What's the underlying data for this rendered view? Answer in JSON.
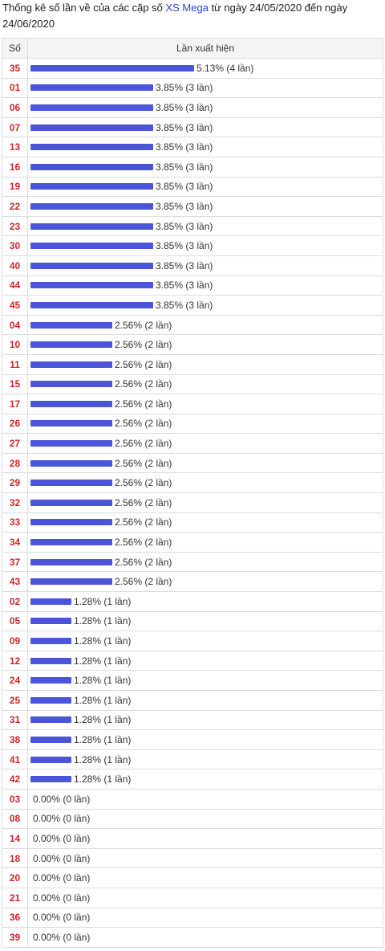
{
  "header": {
    "title_prefix": "Thống kê số lần về của các cặp số ",
    "title_link": "XS Mega",
    "title_suffix": " từ ngày 24/05/2020 đến ngày 24/06/2020"
  },
  "table": {
    "col_number": "Số",
    "col_frequency": "Lần xuất hiện"
  },
  "colors": {
    "bar": "#4a55d9",
    "number": "#d0262a",
    "link": "#2a3fd6"
  },
  "chart_data": {
    "type": "bar",
    "orientation": "horizontal",
    "max_percent": 5.13,
    "rows": [
      {
        "num": "35",
        "percent": 5.13,
        "label": "5.13% (4 lần)"
      },
      {
        "num": "01",
        "percent": 3.85,
        "label": "3.85% (3 lần)"
      },
      {
        "num": "06",
        "percent": 3.85,
        "label": "3.85% (3 lần)"
      },
      {
        "num": "07",
        "percent": 3.85,
        "label": "3.85% (3 lần)"
      },
      {
        "num": "13",
        "percent": 3.85,
        "label": "3.85% (3 lần)"
      },
      {
        "num": "16",
        "percent": 3.85,
        "label": "3.85% (3 lần)"
      },
      {
        "num": "19",
        "percent": 3.85,
        "label": "3.85% (3 lần)"
      },
      {
        "num": "22",
        "percent": 3.85,
        "label": "3.85% (3 lần)"
      },
      {
        "num": "23",
        "percent": 3.85,
        "label": "3.85% (3 lần)"
      },
      {
        "num": "30",
        "percent": 3.85,
        "label": "3.85% (3 lần)"
      },
      {
        "num": "40",
        "percent": 3.85,
        "label": "3.85% (3 lần)"
      },
      {
        "num": "44",
        "percent": 3.85,
        "label": "3.85% (3 lần)"
      },
      {
        "num": "45",
        "percent": 3.85,
        "label": "3.85% (3 lần)"
      },
      {
        "num": "04",
        "percent": 2.56,
        "label": "2.56% (2 lần)"
      },
      {
        "num": "10",
        "percent": 2.56,
        "label": "2.56% (2 lần)"
      },
      {
        "num": "11",
        "percent": 2.56,
        "label": "2.56% (2 lần)"
      },
      {
        "num": "15",
        "percent": 2.56,
        "label": "2.56% (2 lần)"
      },
      {
        "num": "17",
        "percent": 2.56,
        "label": "2.56% (2 lần)"
      },
      {
        "num": "26",
        "percent": 2.56,
        "label": "2.56% (2 lần)"
      },
      {
        "num": "27",
        "percent": 2.56,
        "label": "2.56% (2 lần)"
      },
      {
        "num": "28",
        "percent": 2.56,
        "label": "2.56% (2 lần)"
      },
      {
        "num": "29",
        "percent": 2.56,
        "label": "2.56% (2 lần)"
      },
      {
        "num": "32",
        "percent": 2.56,
        "label": "2.56% (2 lần)"
      },
      {
        "num": "33",
        "percent": 2.56,
        "label": "2.56% (2 lần)"
      },
      {
        "num": "34",
        "percent": 2.56,
        "label": "2.56% (2 lần)"
      },
      {
        "num": "37",
        "percent": 2.56,
        "label": "2.56% (2 lần)"
      },
      {
        "num": "43",
        "percent": 2.56,
        "label": "2.56% (2 lần)"
      },
      {
        "num": "02",
        "percent": 1.28,
        "label": "1.28% (1 lần)"
      },
      {
        "num": "05",
        "percent": 1.28,
        "label": "1.28% (1 lần)"
      },
      {
        "num": "09",
        "percent": 1.28,
        "label": "1.28% (1 lần)"
      },
      {
        "num": "12",
        "percent": 1.28,
        "label": "1.28% (1 lần)"
      },
      {
        "num": "24",
        "percent": 1.28,
        "label": "1.28% (1 lần)"
      },
      {
        "num": "25",
        "percent": 1.28,
        "label": "1.28% (1 lần)"
      },
      {
        "num": "31",
        "percent": 1.28,
        "label": "1.28% (1 lần)"
      },
      {
        "num": "38",
        "percent": 1.28,
        "label": "1.28% (1 lần)"
      },
      {
        "num": "41",
        "percent": 1.28,
        "label": "1.28% (1 lần)"
      },
      {
        "num": "42",
        "percent": 1.28,
        "label": "1.28% (1 lần)"
      },
      {
        "num": "03",
        "percent": 0.0,
        "label": "0.00% (0 lần)"
      },
      {
        "num": "08",
        "percent": 0.0,
        "label": "0.00% (0 lần)"
      },
      {
        "num": "14",
        "percent": 0.0,
        "label": "0.00% (0 lần)"
      },
      {
        "num": "18",
        "percent": 0.0,
        "label": "0.00% (0 lần)"
      },
      {
        "num": "20",
        "percent": 0.0,
        "label": "0.00% (0 lần)"
      },
      {
        "num": "21",
        "percent": 0.0,
        "label": "0.00% (0 lần)"
      },
      {
        "num": "36",
        "percent": 0.0,
        "label": "0.00% (0 lần)"
      },
      {
        "num": "39",
        "percent": 0.0,
        "label": "0.00% (0 lần)"
      }
    ]
  }
}
